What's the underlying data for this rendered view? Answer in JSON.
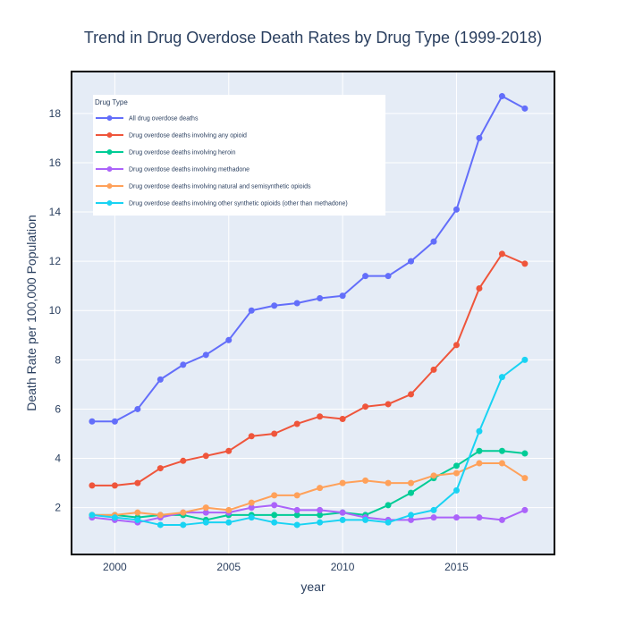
{
  "chart_data": {
    "type": "line",
    "title": "Trend in Drug Overdose Death Rates by Drug Type (1999-2018)",
    "xlabel": "year",
    "ylabel": "Death Rate per 100,000 Population",
    "xlim": [
      1998.1,
      2019.3
    ],
    "ylim": [
      0.1,
      19.7
    ],
    "xticks": [
      2000,
      2005,
      2010,
      2015
    ],
    "yticks": [
      2,
      4,
      6,
      8,
      10,
      12,
      14,
      16,
      18
    ],
    "grid": true,
    "legend": {
      "title": "Drug Type",
      "placement": "top-left"
    },
    "x": [
      1999,
      2000,
      2001,
      2002,
      2003,
      2004,
      2005,
      2006,
      2007,
      2008,
      2009,
      2010,
      2011,
      2012,
      2013,
      2014,
      2015,
      2016,
      2017,
      2018
    ],
    "series": [
      {
        "name": "All drug overdose deaths",
        "color": "#636efa",
        "values": [
          5.5,
          5.5,
          6.0,
          7.2,
          7.8,
          8.2,
          8.8,
          10.0,
          10.2,
          10.3,
          10.5,
          10.6,
          11.4,
          11.4,
          12.0,
          12.8,
          14.1,
          17.0,
          18.7,
          18.2
        ]
      },
      {
        "name": "Drug overdose deaths involving any opioid",
        "color": "#ef553b",
        "values": [
          2.9,
          2.9,
          3.0,
          3.6,
          3.9,
          4.1,
          4.3,
          4.9,
          5.0,
          5.4,
          5.7,
          5.6,
          6.1,
          6.2,
          6.6,
          7.6,
          8.6,
          10.9,
          12.3,
          11.9
        ]
      },
      {
        "name": "Drug overdose deaths involving heroin",
        "color": "#00cc96",
        "values": [
          1.7,
          1.7,
          1.6,
          1.7,
          1.7,
          1.5,
          1.7,
          1.7,
          1.7,
          1.7,
          1.7,
          1.8,
          1.7,
          2.1,
          2.6,
          3.2,
          3.7,
          4.3,
          4.3,
          4.2
        ]
      },
      {
        "name": "Drug overdose deaths involving methadone",
        "color": "#ab63fa",
        "values": [
          1.6,
          1.5,
          1.4,
          1.6,
          1.8,
          1.8,
          1.8,
          2.0,
          2.1,
          1.9,
          1.9,
          1.8,
          1.6,
          1.5,
          1.5,
          1.6,
          1.6,
          1.6,
          1.5,
          1.9
        ]
      },
      {
        "name": "Drug overdose deaths involving natural and semisynthetic opioids",
        "color": "#ffa15a",
        "values": [
          1.7,
          1.7,
          1.8,
          1.7,
          1.8,
          2.0,
          1.9,
          2.2,
          2.5,
          2.5,
          2.8,
          3.0,
          3.1,
          3.0,
          3.0,
          3.3,
          3.4,
          3.8,
          3.8,
          3.2
        ]
      },
      {
        "name": "Drug overdose deaths involving other synthetic opioids (other than methadone)",
        "color": "#19d3f3",
        "values": [
          1.7,
          1.6,
          1.5,
          1.3,
          1.3,
          1.4,
          1.4,
          1.6,
          1.4,
          1.3,
          1.4,
          1.5,
          1.5,
          1.4,
          1.7,
          1.9,
          2.7,
          5.1,
          7.3,
          8.0
        ]
      }
    ]
  }
}
